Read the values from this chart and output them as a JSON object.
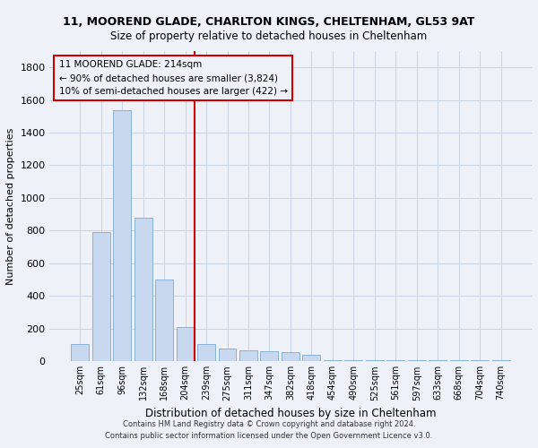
{
  "title1": "11, MOOREND GLADE, CHARLTON KINGS, CHELTENHAM, GL53 9AT",
  "title2": "Size of property relative to detached houses in Cheltenham",
  "xlabel": "Distribution of detached houses by size in Cheltenham",
  "ylabel": "Number of detached properties",
  "footer1": "Contains HM Land Registry data © Crown copyright and database right 2024.",
  "footer2": "Contains public sector information licensed under the Open Government Licence v3.0.",
  "bar_color": "#c8d8ee",
  "bar_edge_color": "#7aaad0",
  "annotation_box_color": "#cc0000",
  "vline_color": "#cc0000",
  "grid_color": "#c8d4e4",
  "background_color": "#eef2f8",
  "categories": [
    "25sqm",
    "61sqm",
    "96sqm",
    "132sqm",
    "168sqm",
    "204sqm",
    "239sqm",
    "275sqm",
    "311sqm",
    "347sqm",
    "382sqm",
    "418sqm",
    "454sqm",
    "490sqm",
    "525sqm",
    "561sqm",
    "597sqm",
    "633sqm",
    "668sqm",
    "704sqm",
    "740sqm"
  ],
  "values": [
    105,
    790,
    1540,
    880,
    500,
    210,
    105,
    75,
    65,
    60,
    55,
    40,
    8,
    8,
    8,
    8,
    8,
    8,
    8,
    8,
    8
  ],
  "ylim": [
    0,
    1900
  ],
  "yticks": [
    0,
    200,
    400,
    600,
    800,
    1000,
    1200,
    1400,
    1600,
    1800
  ],
  "property_label": "11 MOOREND GLADE: 214sqm",
  "annotation_line1": "← 90% of detached houses are smaller (3,824)",
  "annotation_line2": "10% of semi-detached houses are larger (422) →",
  "vline_x_index": 5.45
}
